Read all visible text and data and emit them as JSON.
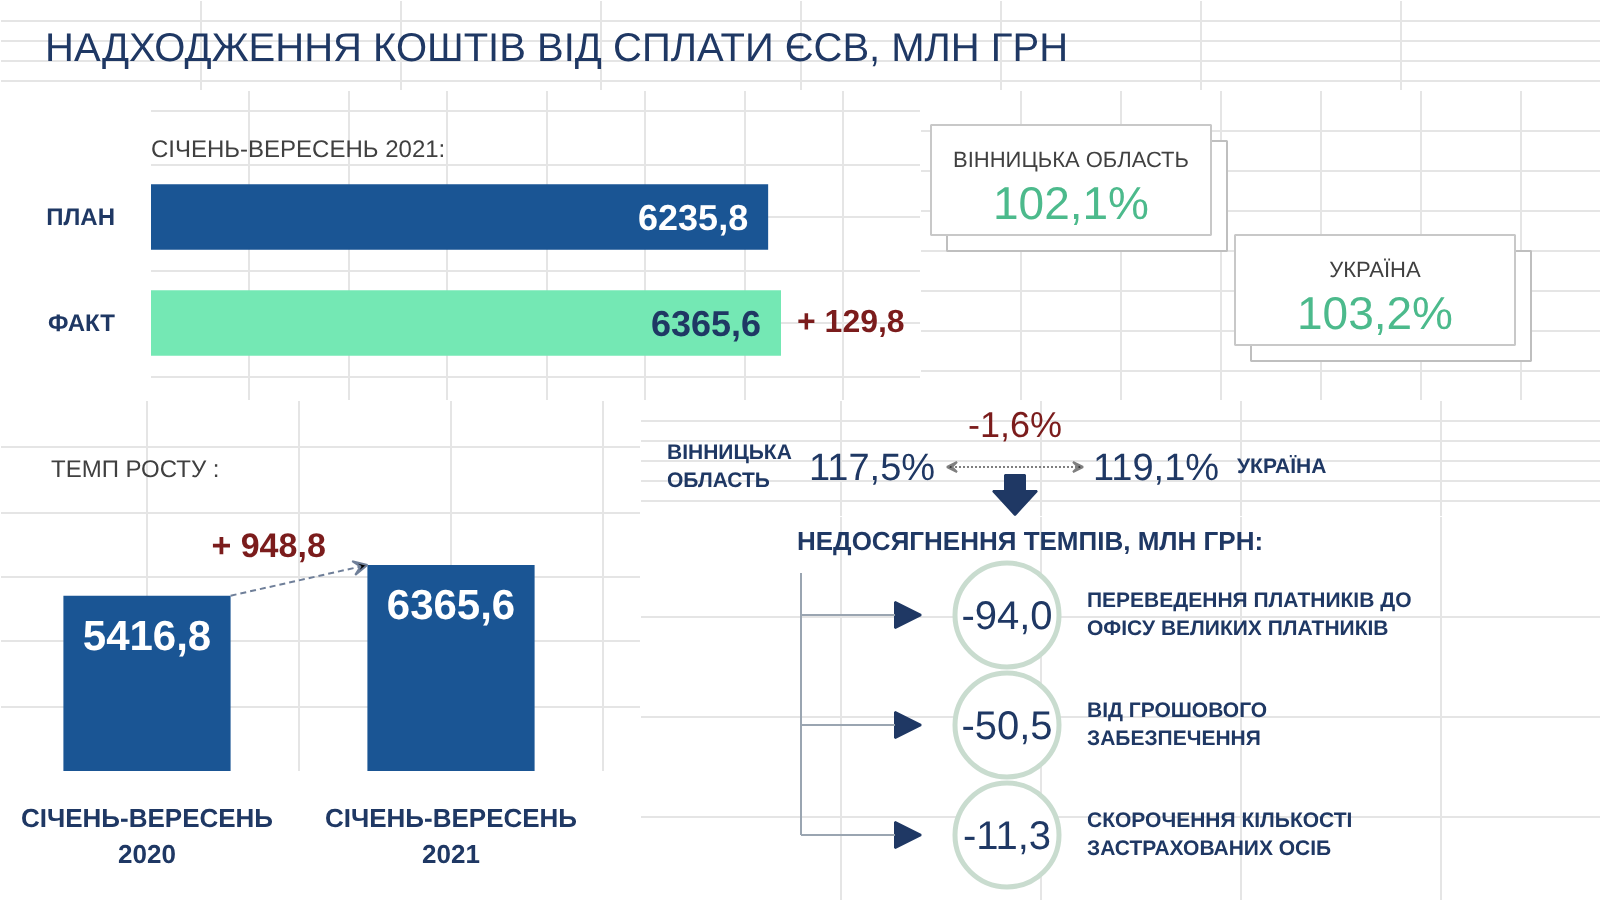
{
  "chart_data": [
    {
      "type": "bar",
      "orientation": "horizontal",
      "title": "НАДХОДЖЕННЯ КОШТІВ ВІД СПЛАТИ ЄСВ, МЛН ГРН",
      "subtitle": "СІЧЕНЬ-ВЕРЕСЕНЬ 2021:",
      "categories": [
        "ПЛАН",
        "ФАКТ"
      ],
      "values": [
        6235.8,
        6365.6
      ],
      "colors": [
        "#1a5594",
        "#74e8b4"
      ],
      "value_labels": [
        "6235,8",
        "6365,6"
      ],
      "annotations": [
        {
          "text": "+ 129,8",
          "x": 6365.6,
          "y": "ФАКТ"
        }
      ]
    },
    {
      "type": "other",
      "categories": [
        "ВІННИЦЬКА ОБЛАСТЬ",
        "УКРАЇНА"
      ],
      "values": [
        102.1,
        103.2
      ],
      "value_labels": [
        "102,1%",
        "103,2%"
      ]
    },
    {
      "type": "bar",
      "title": "ТЕМП РОСТУ :",
      "categories": [
        "СІЧЕНЬ-ВЕРЕСЕНЬ\n2020",
        "СІЧЕНЬ-ВЕРЕСЕНЬ\n2021"
      ],
      "values": [
        5416.8,
        6365.6
      ],
      "color": "#1a5594",
      "value_labels": [
        "5416,8",
        "6365,6"
      ],
      "annotations": [
        "+ 948,8"
      ]
    },
    {
      "type": "other",
      "categories": [
        "ВІННИЦЬКА\nОБЛАСТЬ",
        "УКРАЇНА"
      ],
      "values": [
        117.5,
        119.1
      ],
      "value_labels": [
        "117,5%",
        "119,1%"
      ],
      "annotations": [
        "-1,6%"
      ]
    },
    {
      "type": "other",
      "title": "НЕДОСЯГНЕННЯ ТЕМПІВ, МЛН ГРН:",
      "categories": [
        "ПЕРЕВЕДЕННЯ ПЛАТНИКІВ ДО\nОФІСУ ВЕЛИКИХ ПЛАТНИКІВ",
        "ВІД ГРОШОВОГО\nЗАБЕЗПЕЧЕННЯ",
        "СКОРОЧЕННЯ КІЛЬКОСТІ\nЗАСТРАХОВАНИХ ОСІБ"
      ],
      "values": [
        -94.0,
        -50.5,
        -11.3
      ],
      "value_labels": [
        "-94,0",
        "-50,5",
        "-11,3"
      ]
    }
  ]
}
